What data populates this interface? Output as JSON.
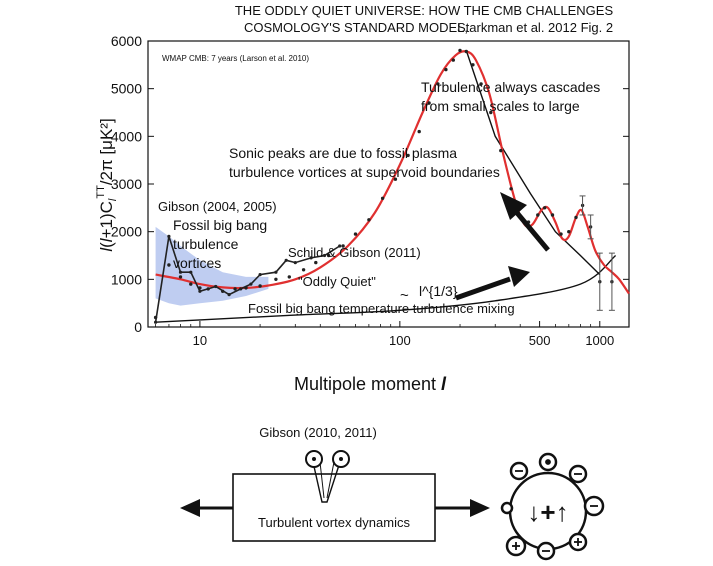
{
  "header": {
    "line1": "THE ODDLY QUIET UNIVERSE: HOW THE CMB CHALLENGES",
    "line2": "COSMOLOGY'S STANDARD MODEL,",
    "citation": "Starkman et al. 2012 Fig. 2"
  },
  "chart_data": {
    "type": "scatter",
    "xscale": "log",
    "xlim": [
      5.5,
      1400
    ],
    "ylim": [
      0,
      6000
    ],
    "xlabel": "Multipole moment l",
    "ylabel": "l(l+1)C_l^TT/2π [μK²]",
    "xticks": [
      {
        "value": 10,
        "label": "10"
      },
      {
        "value": 100,
        "label": "100"
      },
      {
        "value": 500,
        "label": "500"
      },
      {
        "value": 1000,
        "label": "1000"
      }
    ],
    "yticks": [
      {
        "value": 0,
        "label": "0"
      },
      {
        "value": 1000,
        "label": "1000"
      },
      {
        "value": 2000,
        "label": "2000"
      },
      {
        "value": 3000,
        "label": "3000"
      },
      {
        "value": 4000,
        "label": "4000"
      },
      {
        "value": 5000,
        "label": "5000"
      },
      {
        "value": 6000,
        "label": "6000"
      }
    ],
    "inset_label": "WMAP CMB: 7 years (Larson et al. 2010)",
    "model_curve": [
      [
        6,
        1100
      ],
      [
        8,
        1000
      ],
      [
        10,
        900
      ],
      [
        13,
        830
      ],
      [
        17,
        820
      ],
      [
        22,
        870
      ],
      [
        30,
        1000
      ],
      [
        40,
        1250
      ],
      [
        55,
        1700
      ],
      [
        75,
        2400
      ],
      [
        100,
        3400
      ],
      [
        130,
        4500
      ],
      [
        160,
        5300
      ],
      [
        190,
        5700
      ],
      [
        215,
        5780
      ],
      [
        240,
        5600
      ],
      [
        280,
        4900
      ],
      [
        330,
        3600
      ],
      [
        380,
        2600
      ],
      [
        420,
        2150
      ],
      [
        460,
        2150
      ],
      [
        510,
        2450
      ],
      [
        550,
        2500
      ],
      [
        600,
        2200
      ],
      [
        650,
        1850
      ],
      [
        700,
        1900
      ],
      [
        760,
        2300
      ],
      [
        810,
        2450
      ],
      [
        870,
        2100
      ],
      [
        950,
        1600
      ],
      [
        1050,
        1300
      ],
      [
        1150,
        1150
      ],
      [
        1250,
        1000
      ],
      [
        1400,
        700
      ]
    ],
    "data_points": [
      [
        6,
        200
      ],
      [
        7,
        1300
      ],
      [
        8,
        1050
      ],
      [
        9,
        900
      ],
      [
        10,
        820
      ],
      [
        11,
        800
      ],
      [
        13,
        750
      ],
      [
        15,
        800
      ],
      [
        17,
        820
      ],
      [
        20,
        860
      ],
      [
        24,
        1000
      ],
      [
        28,
        1050
      ],
      [
        33,
        1200
      ],
      [
        38,
        1350
      ],
      [
        44,
        1500
      ],
      [
        52,
        1700
      ],
      [
        60,
        1950
      ],
      [
        70,
        2250
      ],
      [
        82,
        2700
      ],
      [
        95,
        3100
      ],
      [
        110,
        3600
      ],
      [
        125,
        4100
      ],
      [
        140,
        4700
      ],
      [
        155,
        5100
      ],
      [
        170,
        5400
      ],
      [
        185,
        5600
      ],
      [
        200,
        5800
      ],
      [
        215,
        5780
      ],
      [
        232,
        5500
      ],
      [
        255,
        5100
      ],
      [
        285,
        4500
      ],
      [
        320,
        3700
      ],
      [
        360,
        2900
      ],
      [
        400,
        2300
      ],
      [
        440,
        2200
      ],
      [
        490,
        2350
      ],
      [
        530,
        2500
      ],
      [
        580,
        2350
      ],
      [
        640,
        1950
      ],
      [
        700,
        2000
      ],
      [
        760,
        2300
      ],
      [
        820,
        2550
      ],
      [
        900,
        2100
      ],
      [
        1000,
        950
      ],
      [
        1150,
        950
      ]
    ],
    "error_bars": [
      {
        "x": 820,
        "y": 2550,
        "err": 200
      },
      {
        "x": 900,
        "y": 2100,
        "err": 250
      },
      {
        "x": 1000,
        "y": 950,
        "err": 600
      },
      {
        "x": 1150,
        "y": 950,
        "err": 600
      }
    ],
    "gibson_trace": [
      [
        6,
        100
      ],
      [
        7,
        1900
      ],
      [
        8,
        1150
      ],
      [
        9,
        1150
      ],
      [
        10,
        750
      ],
      [
        12,
        850
      ],
      [
        14,
        680
      ],
      [
        16,
        800
      ],
      [
        18,
        900
      ],
      [
        20,
        1100
      ],
      [
        24,
        1150
      ],
      [
        27,
        1400
      ],
      [
        30,
        1350
      ],
      [
        36,
        1450
      ],
      [
        42,
        1500
      ],
      [
        50,
        1700
      ]
    ],
    "cosmic_variance_band": {
      "upper": [
        [
          6,
          2100
        ],
        [
          7,
          1900
        ],
        [
          8,
          1700
        ],
        [
          10,
          1400
        ],
        [
          13,
          1150
        ],
        [
          17,
          1050
        ],
        [
          22,
          1050
        ]
      ],
      "lower": [
        [
          22,
          800
        ],
        [
          17,
          650
        ],
        [
          13,
          550
        ],
        [
          10,
          500
        ],
        [
          8,
          450
        ],
        [
          7,
          500
        ],
        [
          6,
          600
        ]
      ]
    },
    "turbulence_line": [
      [
        215,
        5800
      ],
      [
        300,
        4000
      ],
      [
        450,
        2800
      ],
      [
        600,
        2000
      ],
      [
        800,
        1500
      ],
      [
        1000,
        1100
      ]
    ],
    "mixing_line": [
      [
        6,
        100
      ],
      [
        10,
        150
      ],
      [
        30,
        250
      ],
      [
        100,
        350
      ],
      [
        300,
        550
      ],
      [
        800,
        900
      ],
      [
        1200,
        1500
      ]
    ],
    "annotations": {
      "turbulence": [
        "Turbulence always cascades",
        "from small scales to large"
      ],
      "sonic": [
        "Sonic peaks are due to fossil plasma",
        "turbulence vortices at supervoid boundaries"
      ],
      "gibson_ref": "Gibson (2004, 2005)",
      "fossil": [
        "Fossil big bang",
        "turbulence",
        "vortices"
      ],
      "schild": "Schild & Gibson (2011)",
      "oddly_quiet": "\"Oddly Quiet\"",
      "scaling_tilde": "~",
      "scaling_exp": "l^{1/3}",
      "mixing": "Fossil big bang temperature turbulence mixing"
    }
  },
  "lower": {
    "gibson_ref": "Gibson (2010, 2011)",
    "box_label": "Turbulent vortex dynamics",
    "circle_symbols": "↓+↑"
  },
  "colors": {
    "model": "#e03030",
    "data": "#222222",
    "band": "#b8c8f0",
    "lines": "#111111"
  }
}
